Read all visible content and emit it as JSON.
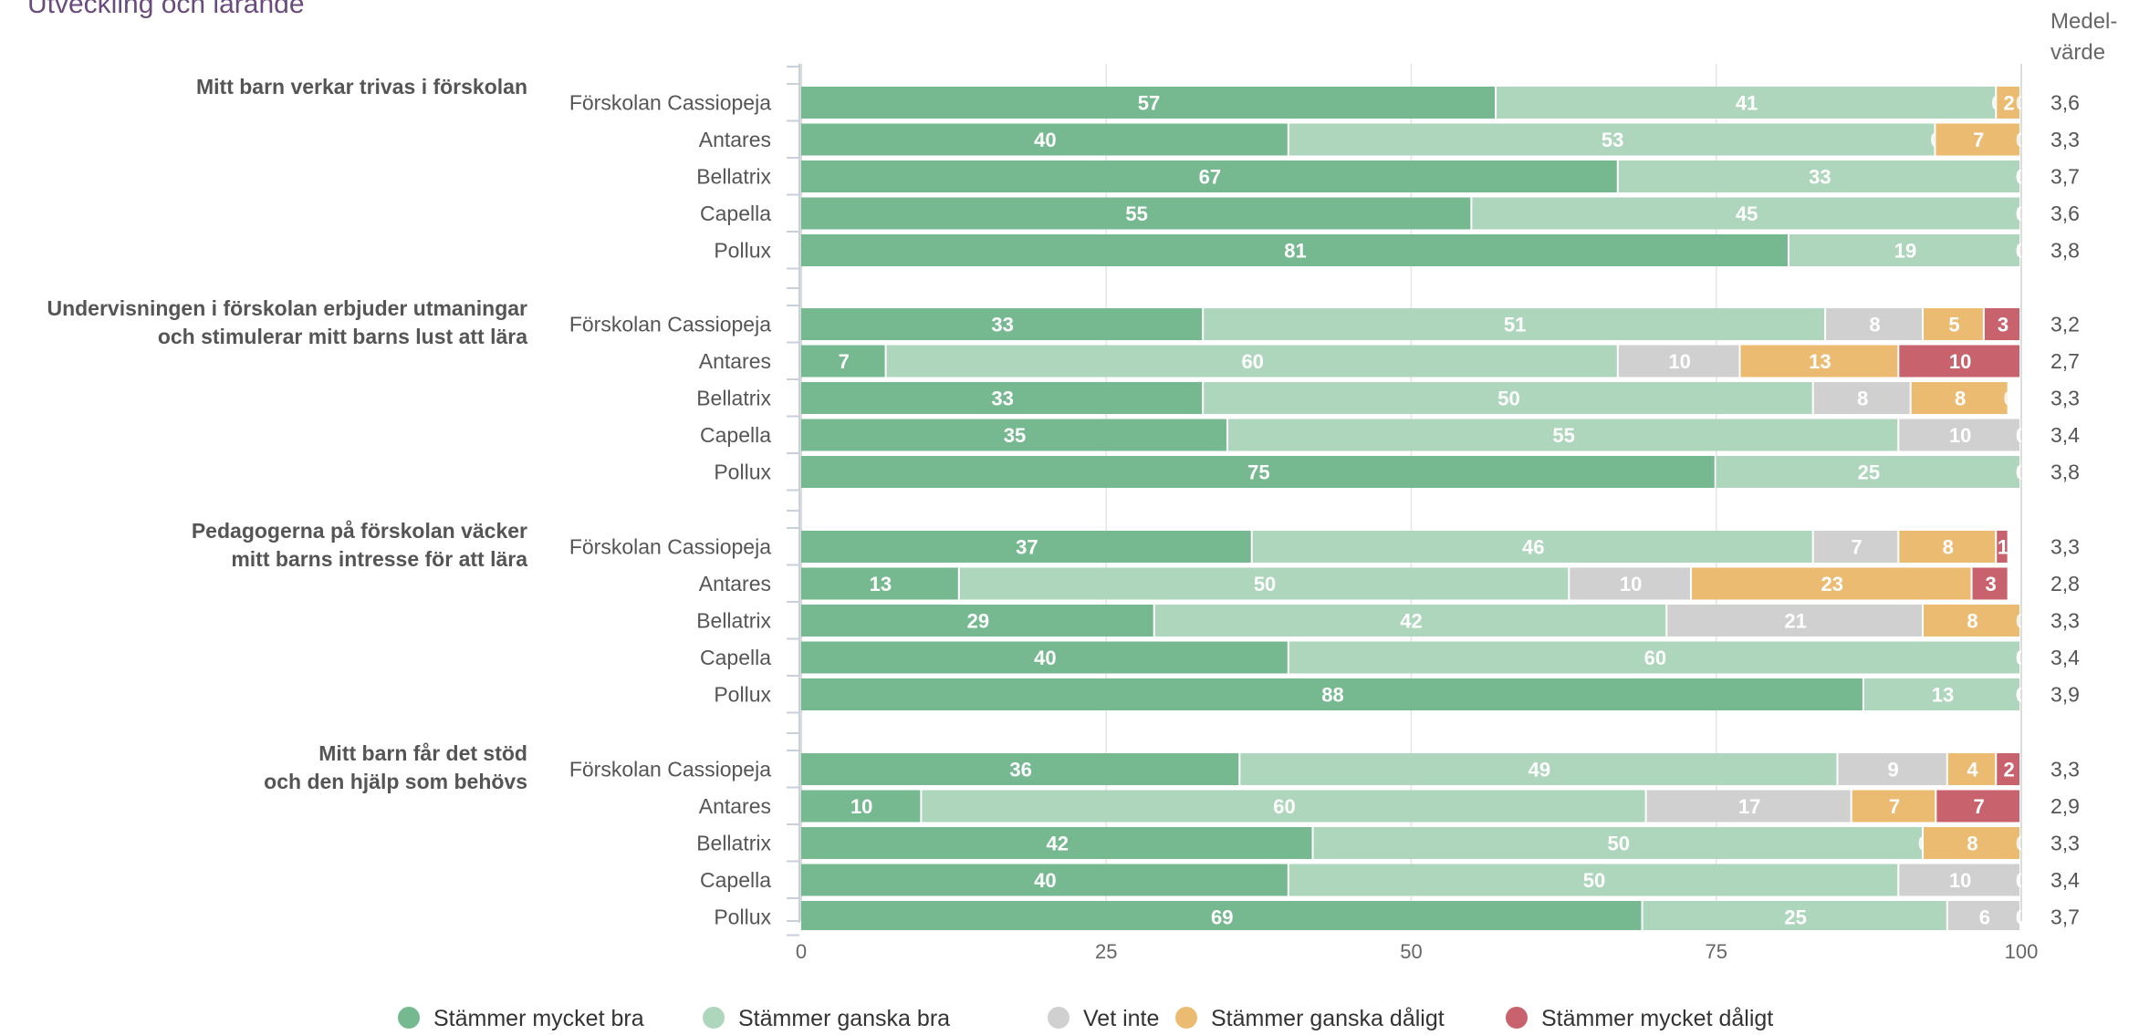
{
  "chart_data": {
    "type": "bar",
    "orientation": "horizontal",
    "stacked": true,
    "title": "Utveckling och lärande",
    "mean_header": [
      "Medel-",
      "värde"
    ],
    "xlim": [
      0,
      100
    ],
    "xticks": [
      "0",
      "25",
      "50",
      "75",
      "100"
    ],
    "legend_position": "bottom",
    "legend": [
      {
        "name": "Stämmer mycket bra",
        "color": "#76b991"
      },
      {
        "name": "Stämmer ganska bra",
        "color": "#aed6bc"
      },
      {
        "name": "Vet inte",
        "color": "#d0d0d0"
      },
      {
        "name": "Stämmer ganska dåligt",
        "color": "#ecbb72"
      },
      {
        "name": "Stämmer mycket dåligt",
        "color": "#c8636e"
      }
    ],
    "groups": [
      {
        "label": [
          "Mitt barn verkar trivas i förskolan"
        ],
        "rows": [
          {
            "name": "Förskolan Cassiopeja",
            "values": [
              57,
              41,
              0,
              2,
              0
            ],
            "mean": "3,6"
          },
          {
            "name": "Antares",
            "values": [
              40,
              53,
              0,
              7,
              0
            ],
            "mean": "3,3"
          },
          {
            "name": "Bellatrix",
            "values": [
              67,
              33,
              0,
              0,
              0
            ],
            "mean": "3,7"
          },
          {
            "name": "Capella",
            "values": [
              55,
              45,
              0,
              0,
              0
            ],
            "mean": "3,6"
          },
          {
            "name": "Pollux",
            "values": [
              81,
              19,
              0,
              0,
              0
            ],
            "mean": "3,8"
          }
        ]
      },
      {
        "label": [
          "Undervisningen i förskolan erbjuder utmaningar",
          "och stimulerar mitt barns lust att lära"
        ],
        "rows": [
          {
            "name": "Förskolan Cassiopeja",
            "values": [
              33,
              51,
              8,
              5,
              3
            ],
            "mean": "3,2"
          },
          {
            "name": "Antares",
            "values": [
              7,
              60,
              10,
              13,
              10
            ],
            "mean": "2,7"
          },
          {
            "name": "Bellatrix",
            "values": [
              33,
              50,
              8,
              8,
              0
            ],
            "mean": "3,3"
          },
          {
            "name": "Capella",
            "values": [
              35,
              55,
              10,
              0,
              0
            ],
            "mean": "3,4"
          },
          {
            "name": "Pollux",
            "values": [
              75,
              25,
              0,
              0,
              0
            ],
            "mean": "3,8"
          }
        ]
      },
      {
        "label": [
          "Pedagogerna på förskolan väcker",
          "mitt barns intresse för att lära"
        ],
        "rows": [
          {
            "name": "Förskolan Cassiopeja",
            "values": [
              37,
              46,
              7,
              8,
              1
            ],
            "mean": "3,3"
          },
          {
            "name": "Antares",
            "values": [
              13,
              50,
              10,
              23,
              3
            ],
            "mean": "2,8"
          },
          {
            "name": "Bellatrix",
            "values": [
              29,
              42,
              21,
              8,
              0
            ],
            "mean": "3,3"
          },
          {
            "name": "Capella",
            "values": [
              40,
              60,
              0,
              0,
              0
            ],
            "mean": "3,4"
          },
          {
            "name": "Pollux",
            "values": [
              88,
              13,
              0,
              0,
              0
            ],
            "mean": "3,9"
          }
        ]
      },
      {
        "label": [
          "Mitt barn får det stöd",
          "och den hjälp som behövs"
        ],
        "rows": [
          {
            "name": "Förskolan Cassiopeja",
            "values": [
              36,
              49,
              9,
              4,
              2
            ],
            "mean": "3,3"
          },
          {
            "name": "Antares",
            "values": [
              10,
              60,
              17,
              7,
              7
            ],
            "mean": "2,9"
          },
          {
            "name": "Bellatrix",
            "values": [
              42,
              50,
              0,
              8,
              0
            ],
            "mean": "3,3"
          },
          {
            "name": "Capella",
            "values": [
              40,
              50,
              10,
              0,
              0
            ],
            "mean": "3,4"
          },
          {
            "name": "Pollux",
            "values": [
              69,
              25,
              6,
              0,
              0
            ],
            "mean": "3,7"
          }
        ]
      }
    ]
  }
}
